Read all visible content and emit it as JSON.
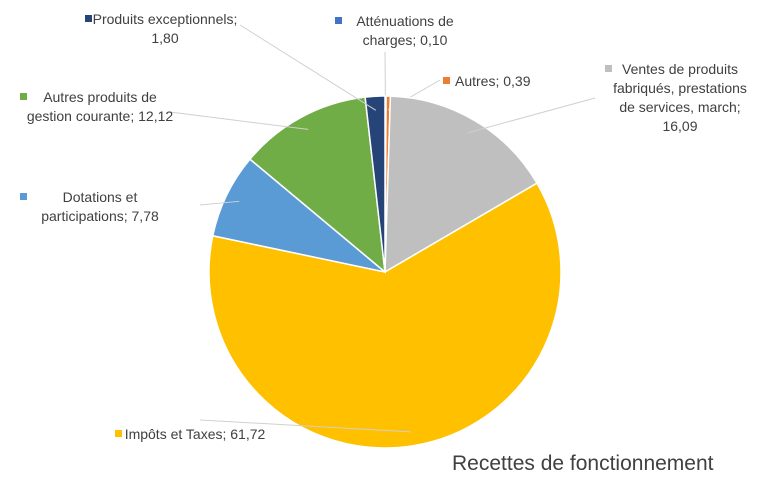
{
  "chart_data": {
    "type": "pie",
    "title": "Recettes de fonctionnement",
    "categories": [
      "Atténuations de charges",
      "Autres",
      "Ventes de produits fabriqués, prestations de services, march",
      "Impôts et Taxes",
      "Dotations et participations",
      "Autres produits de gestion courante",
      "Produits exceptionnels"
    ],
    "values": [
      0.1,
      0.39,
      16.09,
      61.72,
      7.78,
      12.12,
      1.8
    ],
    "value_labels": [
      "0,10",
      "0,39",
      "16,09",
      "61,72",
      "7,78",
      "12,12",
      "1,80"
    ],
    "colors": [
      "#4472c4",
      "#ed7d31",
      "#bfbfbf",
      "#ffc000",
      "#5b9bd5",
      "#70ad47",
      "#264478"
    ]
  }
}
